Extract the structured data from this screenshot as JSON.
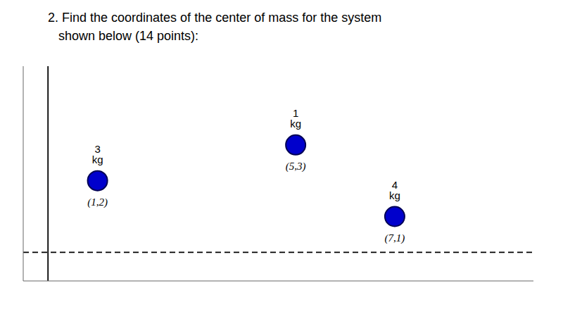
{
  "chart_data": {
    "type": "scatter",
    "title": "2. Find the coordinates of the center of mass for the system",
    "subtitle": "   shown below (14 points):",
    "x": [
      1,
      5,
      7
    ],
    "values": [
      2,
      3,
      1
    ],
    "labels": [
      "3 kg",
      "1 kg",
      "4 kg"
    ],
    "coord_labels": [
      "(1,2)",
      "(5,3)",
      "(7,1)"
    ],
    "color": "#0000cc",
    "marker": "circle",
    "xlim": [
      -0.5,
      9.8
    ],
    "ylim": [
      -0.8,
      5.2
    ],
    "axis_origin": [
      0,
      0
    ],
    "tick_labels": false,
    "grid": false
  }
}
